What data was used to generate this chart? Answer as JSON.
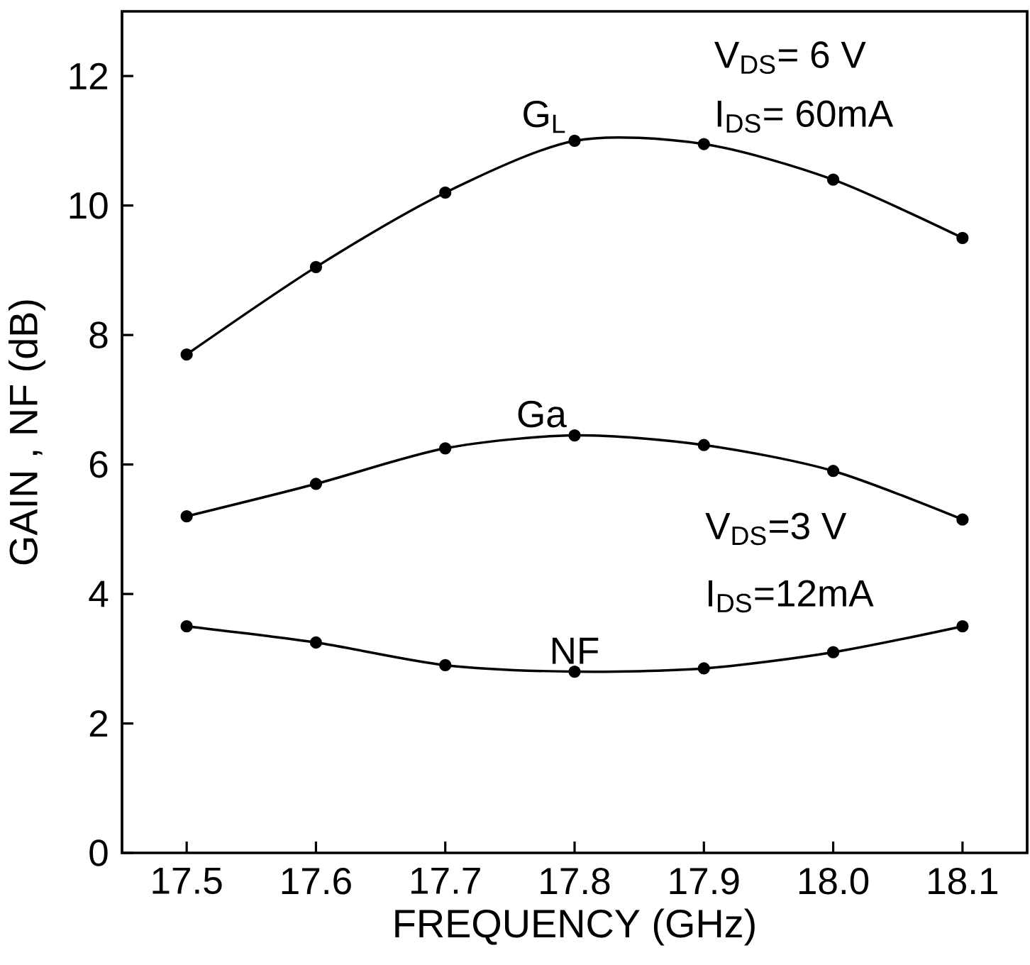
{
  "chart_data": {
    "type": "line",
    "xlabel": "FREQUENCY (GHz)",
    "ylabel": "GAIN , NF (dB)",
    "x": [
      17.5,
      17.6,
      17.7,
      17.8,
      17.9,
      18.0,
      18.1
    ],
    "series": [
      {
        "name": "G$_{L}$",
        "color": "#000000",
        "values": [
          7.7,
          9.05,
          10.2,
          11.0,
          10.95,
          10.4,
          9.5
        ]
      },
      {
        "name": "Ga",
        "color": "#000000",
        "values": [
          5.2,
          5.7,
          6.25,
          6.45,
          6.3,
          5.9,
          5.15
        ]
      },
      {
        "name": "NF",
        "color": "#000000",
        "values": [
          3.5,
          3.25,
          2.9,
          2.8,
          2.85,
          3.1,
          3.5
        ]
      }
    ],
    "annotations": [
      "V$_{DS}$= 6 V",
      "I$_{DS}$= 60mA",
      "V$_{DS}$=3 V",
      "I$_{DS}$=12mA"
    ],
    "xlim": [
      17.45,
      18.15
    ],
    "ylim": [
      0,
      13
    ],
    "xticks": [
      17.5,
      17.6,
      17.7,
      17.8,
      17.9,
      {
        "value": 18.0,
        "label": "18.0"
      },
      18.1
    ],
    "yticks": [
      0,
      2,
      4,
      6,
      8,
      10,
      12
    ],
    "marker": "circle",
    "line_style": "solid",
    "legend": false,
    "grid": false
  }
}
